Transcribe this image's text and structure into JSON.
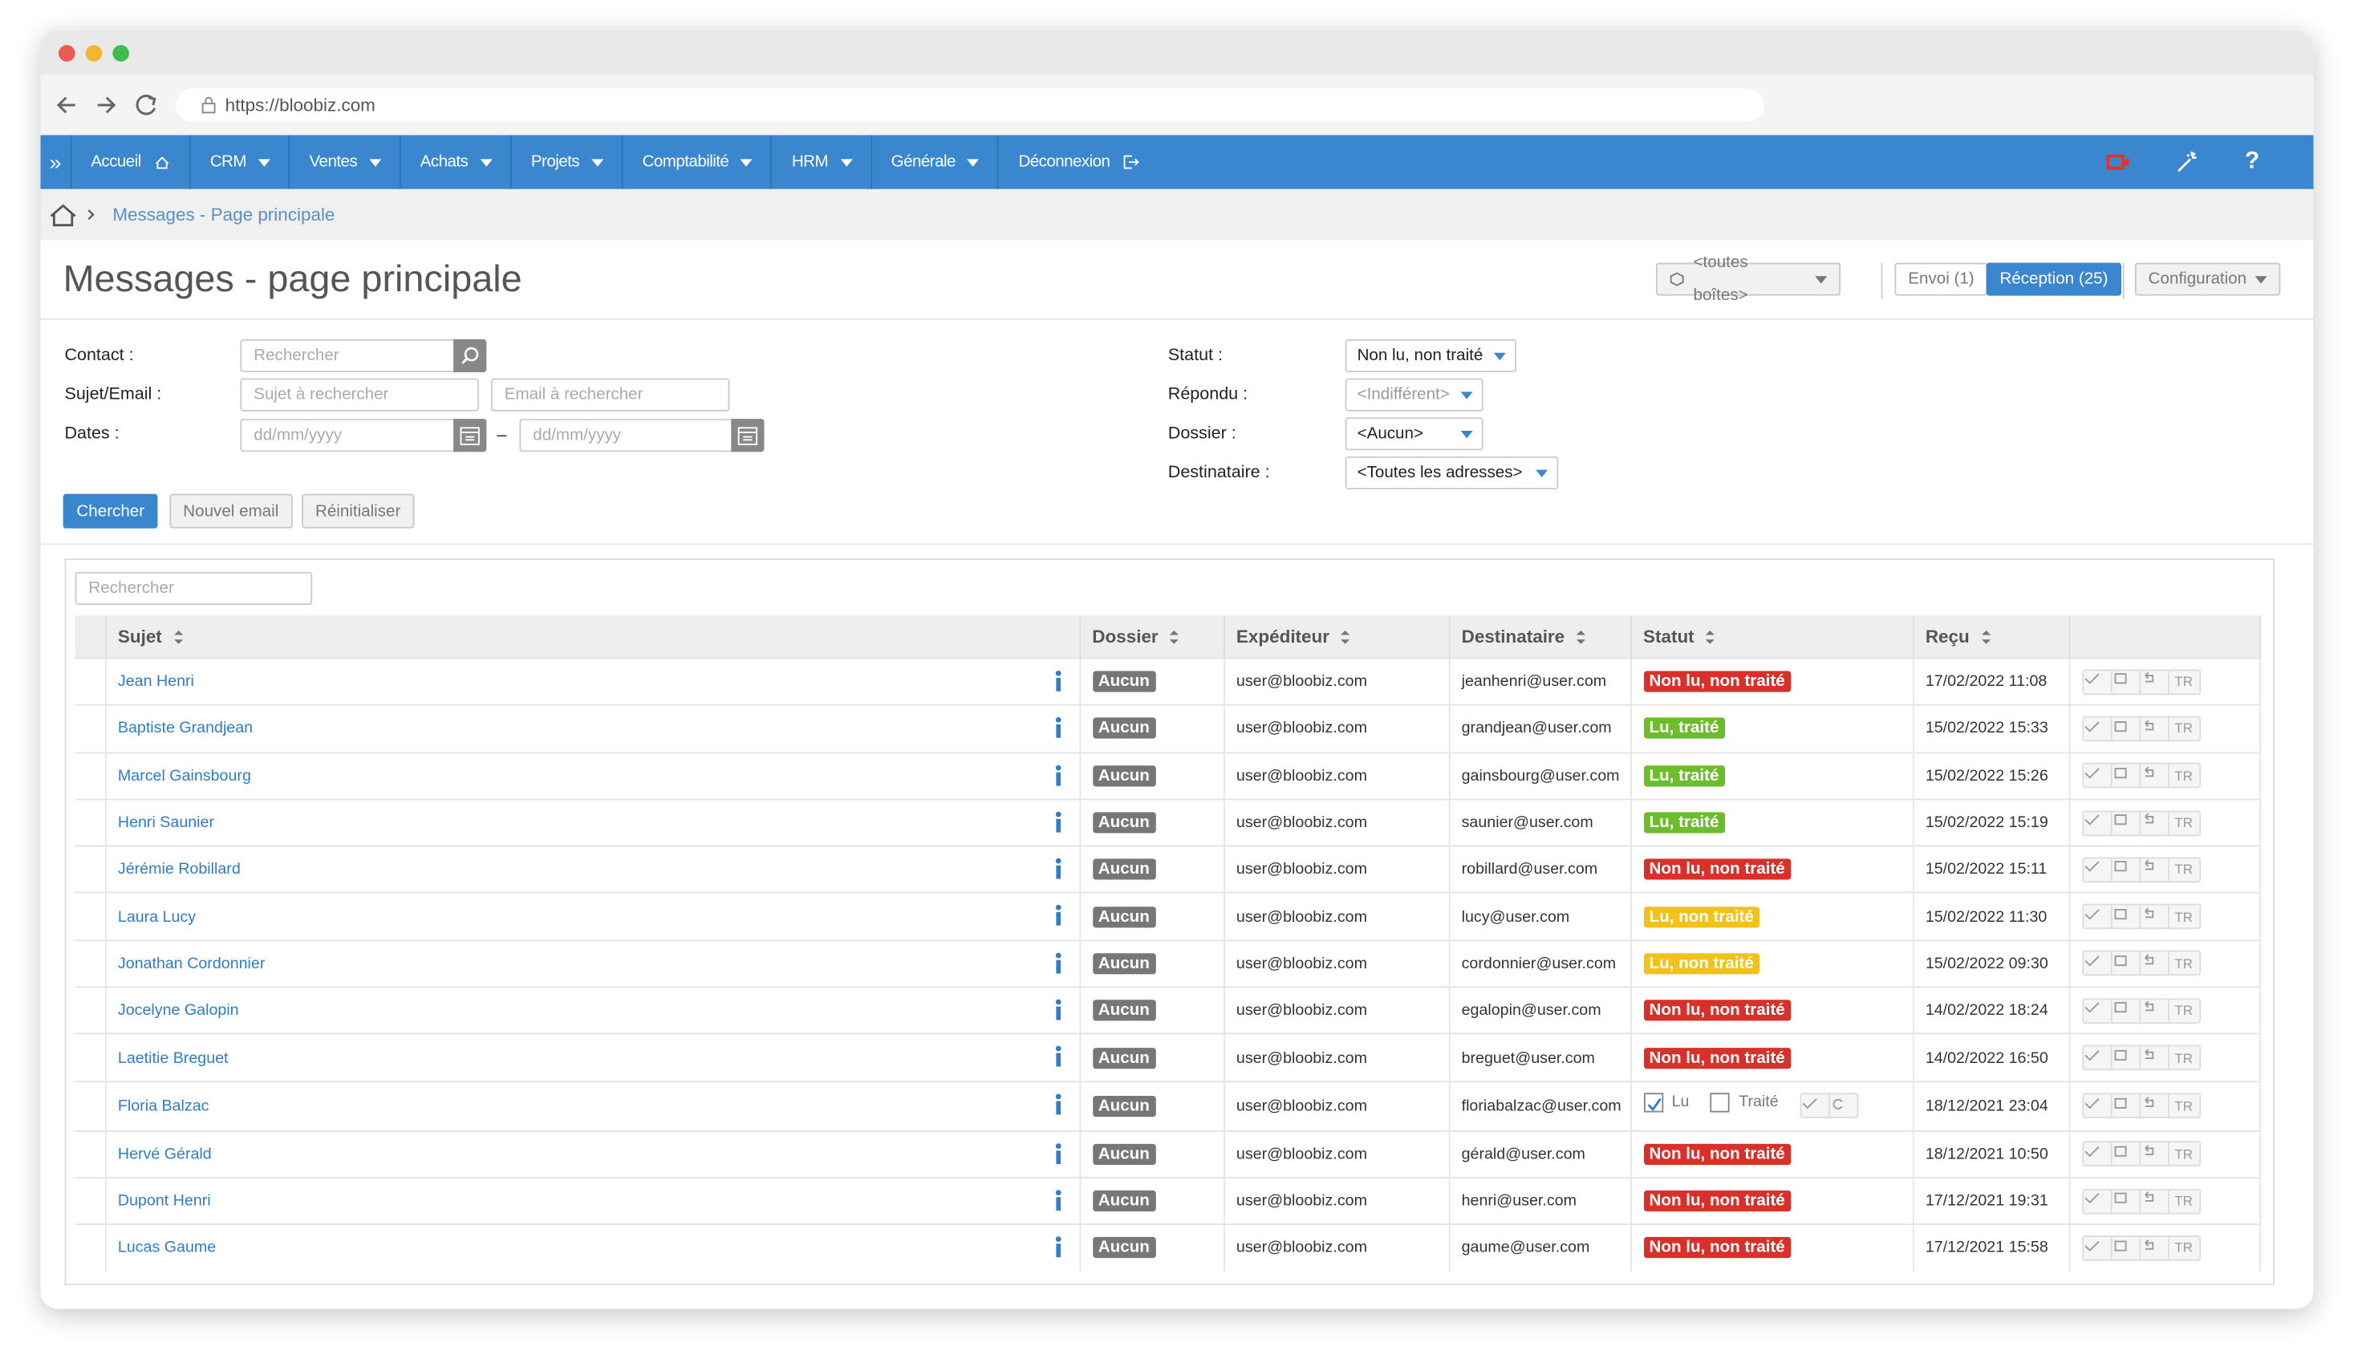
{
  "browser": {
    "url": "https://bloobiz.com"
  },
  "nav": {
    "items": [
      {
        "label": "Accueil"
      },
      {
        "label": "CRM",
        "menu": true
      },
      {
        "label": "Ventes",
        "menu": true
      },
      {
        "label": "Achats",
        "menu": true
      },
      {
        "label": "Projets",
        "menu": true
      },
      {
        "label": "Comptabilité",
        "menu": true
      },
      {
        "label": "HRM",
        "menu": true
      },
      {
        "label": "Générale",
        "menu": true
      },
      {
        "label": "Déconnexion"
      }
    ],
    "expand": "»",
    "help": "?"
  },
  "breadcrumb": {
    "current": "Messages - Page principale"
  },
  "header": {
    "title": "Messages - page principale",
    "mailbox": "<toutes boîtes>",
    "sent": "Envoi (1)",
    "received": "Réception (25)",
    "config": "Configuration"
  },
  "filters": {
    "contact_label": "Contact :",
    "contact_placeholder": "Rechercher",
    "subject_label": "Sujet/Email :",
    "subject_placeholder": "Sujet à rechercher",
    "email_placeholder": "Email à rechercher",
    "dates_label": "Dates :",
    "date_from": "dd/mm/yyyy",
    "date_sep": "–",
    "date_to": "dd/mm/yyyy",
    "status_label": "Statut :",
    "status_value": "Non lu, non traité",
    "replied_label": "Répondu :",
    "replied_value": "<Indifférent>",
    "folder_label": "Dossier :",
    "folder_value": "<Aucun>",
    "recipient_label": "Destinataire :",
    "recipient_value": "<Toutes les adresses>"
  },
  "buttons": {
    "search": "Chercher",
    "new_email": "Nouvel email",
    "reset": "Réinitialiser"
  },
  "table": {
    "search_placeholder": "Rechercher",
    "columns": [
      "Sujet",
      "Dossier",
      "Expéditeur",
      "Destinataire",
      "Statut",
      "Reçu"
    ],
    "action_label": "TR",
    "status_colors": {
      "Non lu, non traité": "#d9302a",
      "Lu, traité": "#6cbd2c",
      "Lu, non traité": "#f2c21b"
    },
    "rows": [
      {
        "subject": "Jean Henri",
        "folder": "Aucun",
        "sender": "user@bloobiz.com",
        "recipient": "jeanhenri@user.com",
        "status": "Non lu, non traité",
        "received": "17/02/2022 11:08"
      },
      {
        "subject": "Baptiste Grandjean",
        "folder": "Aucun",
        "sender": "user@bloobiz.com",
        "recipient": "grandjean@user.com",
        "status": "Lu, traité",
        "received": "15/02/2022 15:33"
      },
      {
        "subject": "Marcel Gainsbourg",
        "folder": "Aucun",
        "sender": "user@bloobiz.com",
        "recipient": "gainsbourg@user.com",
        "status": "Lu, traité",
        "received": "15/02/2022 15:26"
      },
      {
        "subject": "Henri Saunier",
        "folder": "Aucun",
        "sender": "user@bloobiz.com",
        "recipient": "saunier@user.com",
        "status": "Lu, traité",
        "received": "15/02/2022 15:19"
      },
      {
        "subject": "Jérémie Robillard",
        "folder": "Aucun",
        "sender": "user@bloobiz.com",
        "recipient": "robillard@user.com",
        "status": "Non lu, non traité",
        "received": "15/02/2022 15:11"
      },
      {
        "subject": "Laura Lucy",
        "folder": "Aucun",
        "sender": "user@bloobiz.com",
        "recipient": "lucy@user.com",
        "status": "Lu, non traité",
        "received": "15/02/2022 11:30"
      },
      {
        "subject": "Jonathan Cordonnier",
        "folder": "Aucun",
        "sender": "user@bloobiz.com",
        "recipient": "cordonnier@user.com",
        "status": "Lu, non traité",
        "received": "15/02/2022 09:30"
      },
      {
        "subject": "Jocelyne Galopin",
        "folder": "Aucun",
        "sender": "user@bloobiz.com",
        "recipient": "egalopin@user.com",
        "status": "Non lu, non traité",
        "received": "14/02/2022 18:24"
      },
      {
        "subject": "Laetitie Breguet",
        "folder": "Aucun",
        "sender": "user@bloobiz.com",
        "recipient": "breguet@user.com",
        "status": "Non lu, non traité",
        "received": "14/02/2022 16:50"
      },
      {
        "subject": "Floria Balzac",
        "folder": "Aucun",
        "sender": "user@bloobiz.com",
        "recipient": "floriabalzac@user.com",
        "status_checkboxes": [
          "Lu",
          "Traité"
        ],
        "received": "18/12/2021 23:04"
      },
      {
        "subject": "Hervé Gérald",
        "folder": "Aucun",
        "sender": "user@bloobiz.com",
        "recipient": "gérald@user.com",
        "status": "Non lu, non traité",
        "received": "18/12/2021 10:50"
      },
      {
        "subject": "Dupont Henri",
        "folder": "Aucun",
        "sender": "user@bloobiz.com",
        "recipient": "henri@user.com",
        "status": "Non lu, non traité",
        "received": "17/12/2021 19:31"
      },
      {
        "subject": "Lucas Gaume",
        "folder": "Aucun",
        "sender": "user@bloobiz.com",
        "recipient": "gaume@user.com",
        "status": "Non lu, non traité",
        "received": "17/12/2021 15:58"
      }
    ]
  }
}
